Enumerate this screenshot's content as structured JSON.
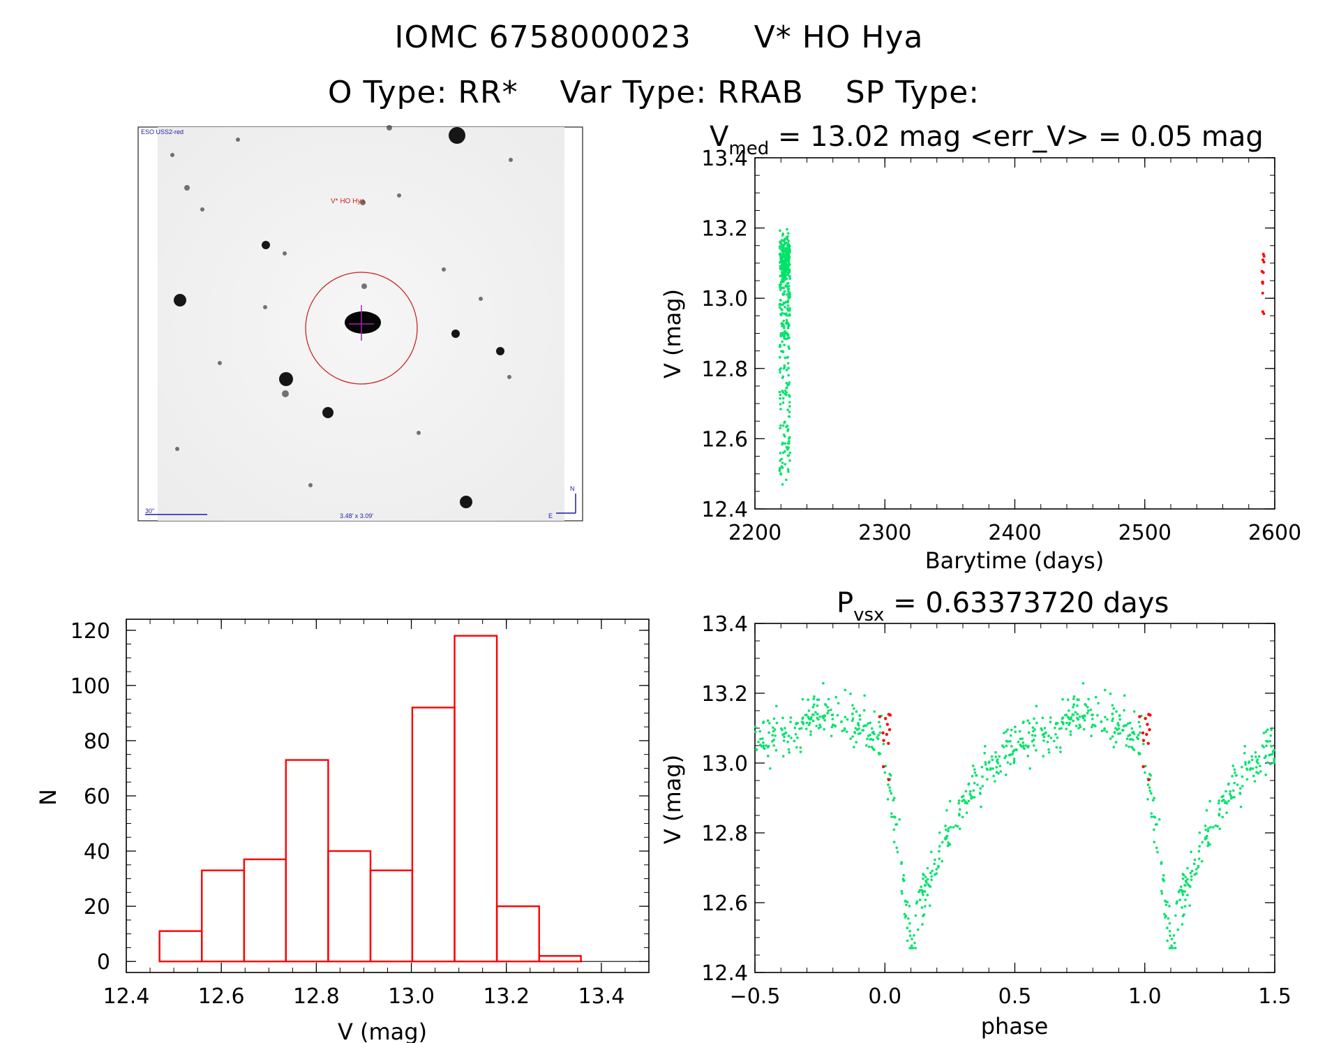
{
  "header": {
    "star_id": "IOMC 6758000023",
    "star_name": "V* HO Hya",
    "otype_label": "O Type:",
    "otype_value": "RR*",
    "vartype_label": "Var Type:",
    "vartype_value": "RRAB",
    "sptype_label": "SP Type:",
    "sptype_value": ""
  },
  "finder": {
    "survey_label": "ESO USS2-red",
    "target_label": "V* HO Hya",
    "scale_label": "30\"",
    "center_label": "3.48' x 3.09'",
    "north_label": "N",
    "east_label": "E"
  },
  "colors": {
    "green": "#00e36a",
    "red": "#ff0000",
    "hist": "#ff0000",
    "finder_circle": "#cc2222",
    "finder_text": "#1a1aaa"
  },
  "chart_data": [
    {
      "id": "lightcurve",
      "type": "scatter",
      "title_main": "V",
      "title_sub": "med",
      "title_rest": " = 13.02 mag <err_V> = 0.05 mag",
      "xlabel": "Barytime (days)",
      "ylabel": "V (mag)",
      "xlim": [
        2200,
        2600
      ],
      "ylim": [
        13.4,
        12.4
      ],
      "y_inverted": true,
      "xticks": [
        2200,
        2300,
        2400,
        2500,
        2600
      ],
      "yticks": [
        "12.4",
        "12.6",
        "12.8",
        "13.0",
        "13.2",
        "13.4"
      ],
      "series": [
        {
          "color": "#00e36a",
          "x_range": [
            2219,
            2227
          ],
          "y_range": [
            12.47,
            13.32
          ],
          "count": 420
        },
        {
          "color": "#ff0000",
          "x_range": [
            2590,
            2592
          ],
          "y_range": [
            12.95,
            13.14
          ],
          "count": 12
        }
      ]
    },
    {
      "id": "phased",
      "type": "scatter",
      "title_main": "P",
      "title_sub": "vsx",
      "title_rest": " = 0.63373720 days",
      "xlabel": "phase",
      "ylabel": "V (mag)",
      "xlim": [
        -0.5,
        1.5
      ],
      "ylim": [
        13.4,
        12.4
      ],
      "y_inverted": true,
      "xticks": [
        "−0.5",
        "0.0",
        "0.5",
        "1.0",
        "1.5"
      ],
      "yticks": [
        "12.4",
        "12.6",
        "12.8",
        "13.0",
        "13.2",
        "13.4"
      ],
      "series": [
        {
          "color": "#00e36a",
          "shape": "RRab",
          "max_phase": 0.1,
          "max_mag": 12.48,
          "min_mag": 13.15
        },
        {
          "color": "#ff0000",
          "phase_range": [
            -0.02,
            0.03
          ],
          "y_range": [
            12.95,
            13.14
          ],
          "count": 12
        }
      ]
    },
    {
      "id": "histogram",
      "type": "bar",
      "xlabel": "V (mag)",
      "ylabel": "N",
      "xlim": [
        12.4,
        13.5
      ],
      "ylim": [
        0,
        120
      ],
      "xticks": [
        "12.4",
        "12.6",
        "12.8",
        "13.0",
        "13.2",
        "13.4"
      ],
      "yticks": [
        "0",
        "20",
        "40",
        "60",
        "80",
        "100",
        "120"
      ],
      "bin_edges": [
        12.47,
        12.559,
        12.648,
        12.736,
        12.825,
        12.914,
        13.002,
        13.091,
        13.18,
        13.269,
        13.357
      ],
      "values": [
        11,
        33,
        37,
        73,
        40,
        33,
        92,
        118,
        20,
        2
      ]
    }
  ]
}
